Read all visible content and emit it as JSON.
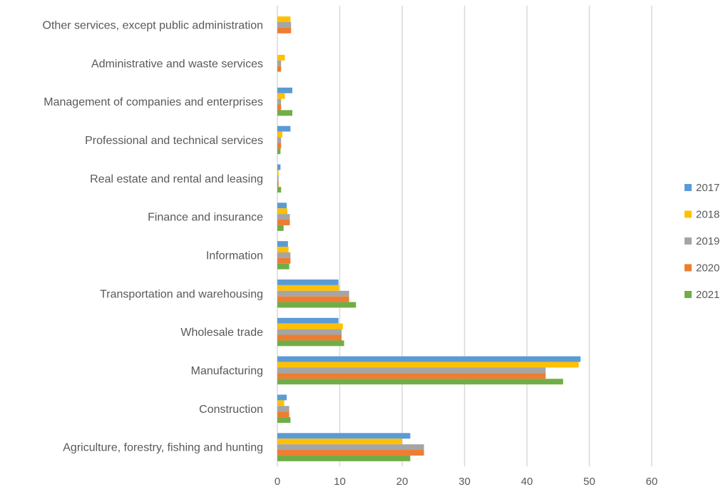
{
  "chart_data": {
    "type": "bar",
    "orientation": "horizontal",
    "categories": [
      "Agriculture, forestry, fishing and hunting",
      "Construction",
      "Manufacturing",
      "Wholesale trade",
      "Transportation and warehousing",
      "Information",
      "Finance and insurance",
      "Real estate and rental and leasing",
      "Professional and technical services",
      "Management of companies and enterprises",
      "Administrative and waste services",
      "Other services, except public administration"
    ],
    "series": [
      {
        "name": "2017",
        "color": "#5B9BD5",
        "values": [
          21.3,
          1.5,
          48.6,
          9.8,
          9.8,
          1.7,
          1.5,
          0.5,
          2.1,
          2.4,
          0.0,
          0.0
        ]
      },
      {
        "name": "2018",
        "color": "#FFC000",
        "values": [
          20.0,
          1.1,
          48.3,
          10.5,
          9.9,
          1.8,
          1.6,
          0.2,
          0.8,
          1.2,
          1.2,
          2.1
        ]
      },
      {
        "name": "2019",
        "color": "#A5A5A5",
        "values": [
          23.5,
          1.9,
          43.0,
          10.3,
          11.5,
          2.1,
          2.0,
          0.2,
          0.6,
          0.6,
          0.6,
          2.2
        ]
      },
      {
        "name": "2020",
        "color": "#ED7D31",
        "values": [
          23.5,
          1.9,
          43.0,
          10.3,
          11.5,
          2.1,
          2.0,
          0.2,
          0.6,
          0.6,
          0.6,
          2.2
        ]
      },
      {
        "name": "2021",
        "color": "#70AD47",
        "values": [
          21.3,
          2.1,
          45.8,
          10.7,
          12.6,
          1.9,
          1.0,
          0.6,
          0.5,
          2.4,
          0.0,
          0.0
        ]
      }
    ],
    "xlim": [
      0,
      60
    ],
    "xticks": [
      0,
      10,
      20,
      30,
      40,
      50,
      60
    ],
    "xlabel": "",
    "ylabel": "",
    "title": "",
    "grid": "vertical",
    "legend_position": "right"
  }
}
